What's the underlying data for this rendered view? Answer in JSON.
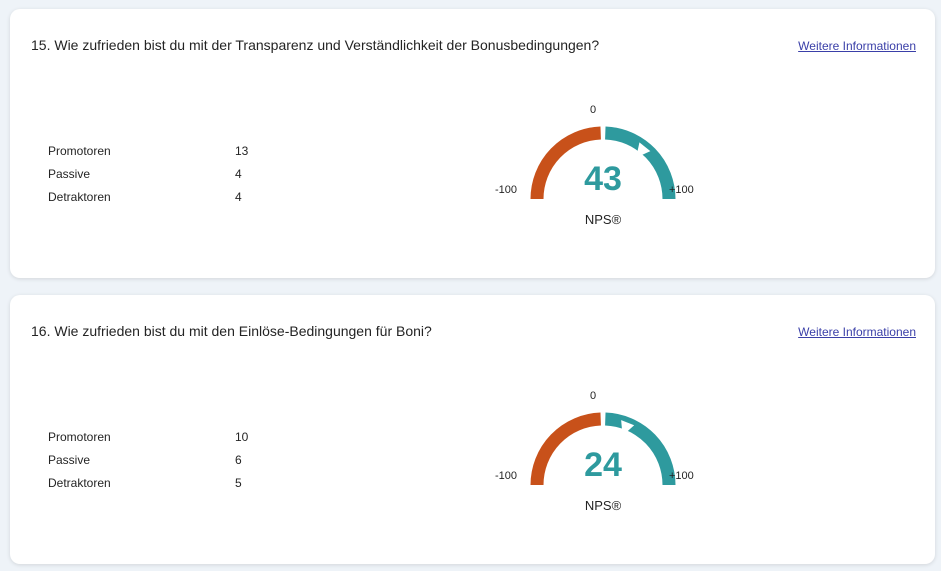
{
  "colors": {
    "negative": "#c8511a",
    "positive": "#2e9a9e"
  },
  "questions": [
    {
      "title": "15. Wie zufrieden bist du mit der Transparenz und Verständlichkeit der Bonusbedingungen?",
      "link": "Weitere Informationen",
      "stats": [
        {
          "label": "Promotoren",
          "value": "13"
        },
        {
          "label": "Passive",
          "value": "4"
        },
        {
          "label": "Detraktoren",
          "value": "4"
        }
      ],
      "gauge": {
        "zero": "0",
        "min": "-100",
        "max": "+100",
        "score": 43,
        "score_text": "43",
        "caption": "NPS®"
      }
    },
    {
      "title": "16. Wie zufrieden bist du mit den Einlöse-Bedingungen für Boni?",
      "link": "Weitere Informationen",
      "stats": [
        {
          "label": "Promotoren",
          "value": "10"
        },
        {
          "label": "Passive",
          "value": "6"
        },
        {
          "label": "Detraktoren",
          "value": "5"
        }
      ],
      "gauge": {
        "zero": "0",
        "min": "-100",
        "max": "+100",
        "score": 24,
        "score_text": "24",
        "caption": "NPS®"
      }
    }
  ]
}
